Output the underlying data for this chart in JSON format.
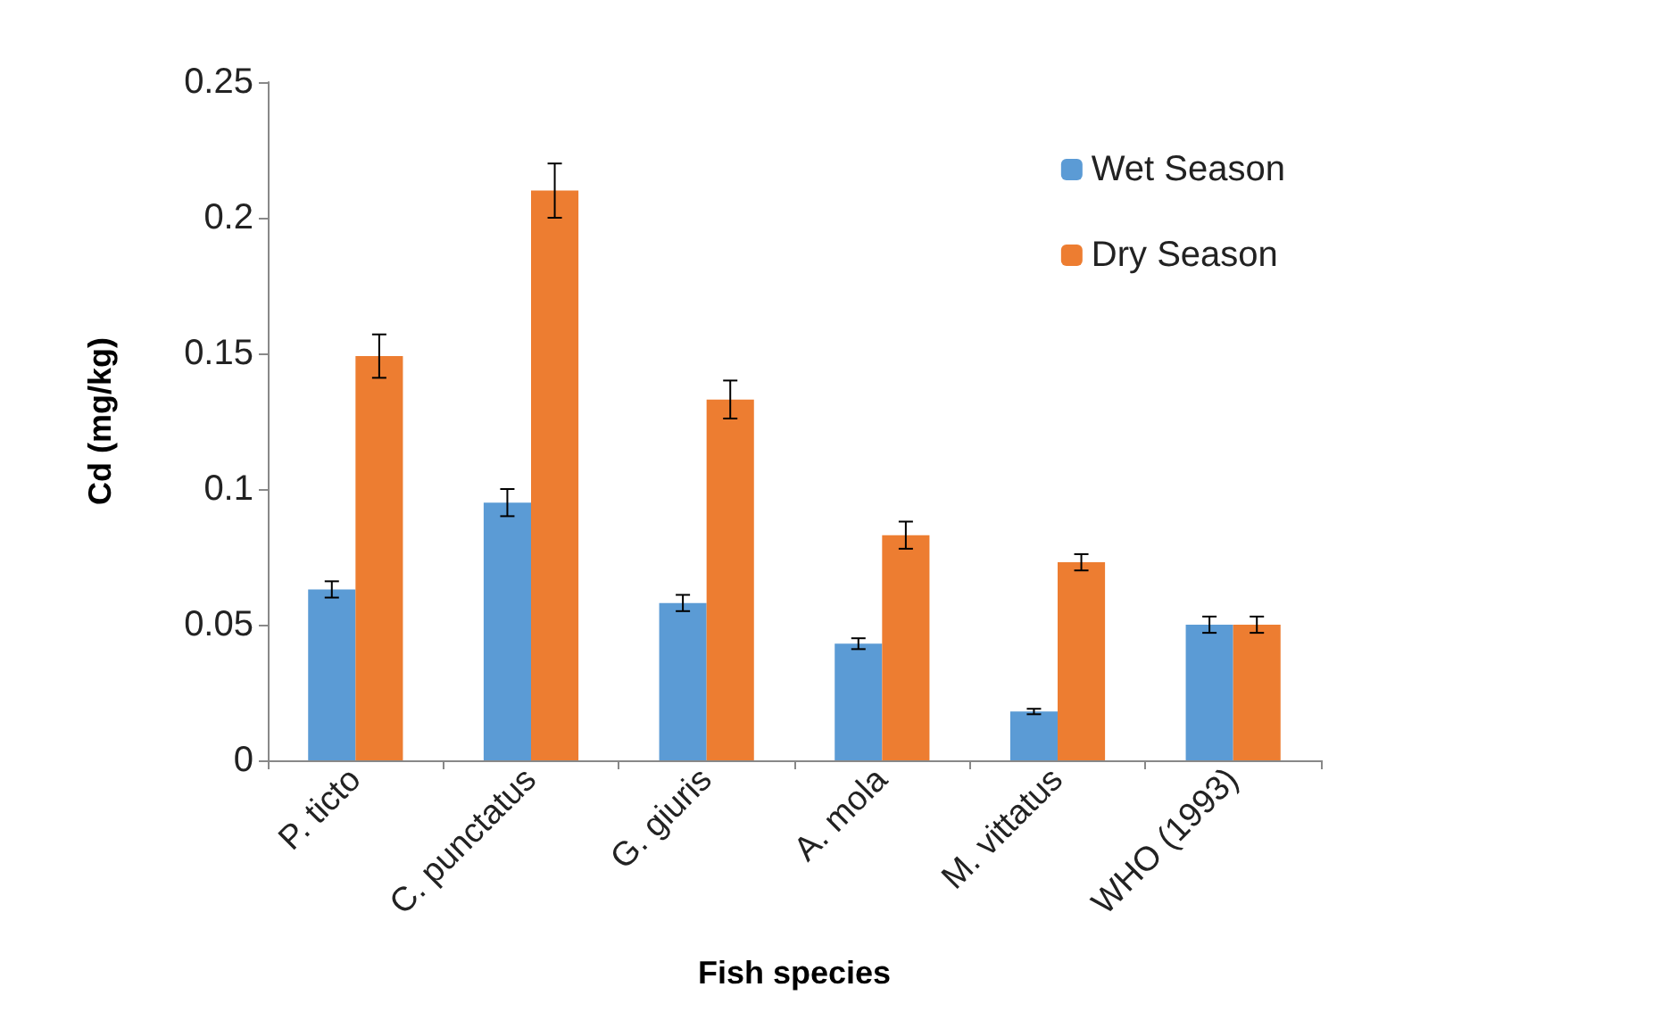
{
  "chart_data": {
    "type": "bar",
    "xlabel": "Fish species",
    "ylabel": "Cd (mg/kg)",
    "categories": [
      "P. ticto",
      "C. punctatus",
      "G. giuris",
      "A. mola",
      "M. vittatus",
      "WHO (1993)"
    ],
    "series": [
      {
        "name": "Wet Season",
        "color": "#5b9bd5",
        "values": [
          0.063,
          0.095,
          0.058,
          0.043,
          0.018,
          0.05
        ],
        "errors": [
          0.003,
          0.005,
          0.003,
          0.002,
          0.001,
          0.003
        ]
      },
      {
        "name": "Dry Season",
        "color": "#ed7d31",
        "values": [
          0.149,
          0.21,
          0.133,
          0.083,
          0.073,
          0.05
        ],
        "errors": [
          0.008,
          0.01,
          0.007,
          0.005,
          0.003,
          0.003
        ]
      }
    ],
    "ylim": [
      0,
      0.25
    ],
    "yticks": [
      0,
      0.05,
      0.1,
      0.15,
      0.2,
      0.25
    ],
    "grid": false,
    "legend": "top right"
  }
}
